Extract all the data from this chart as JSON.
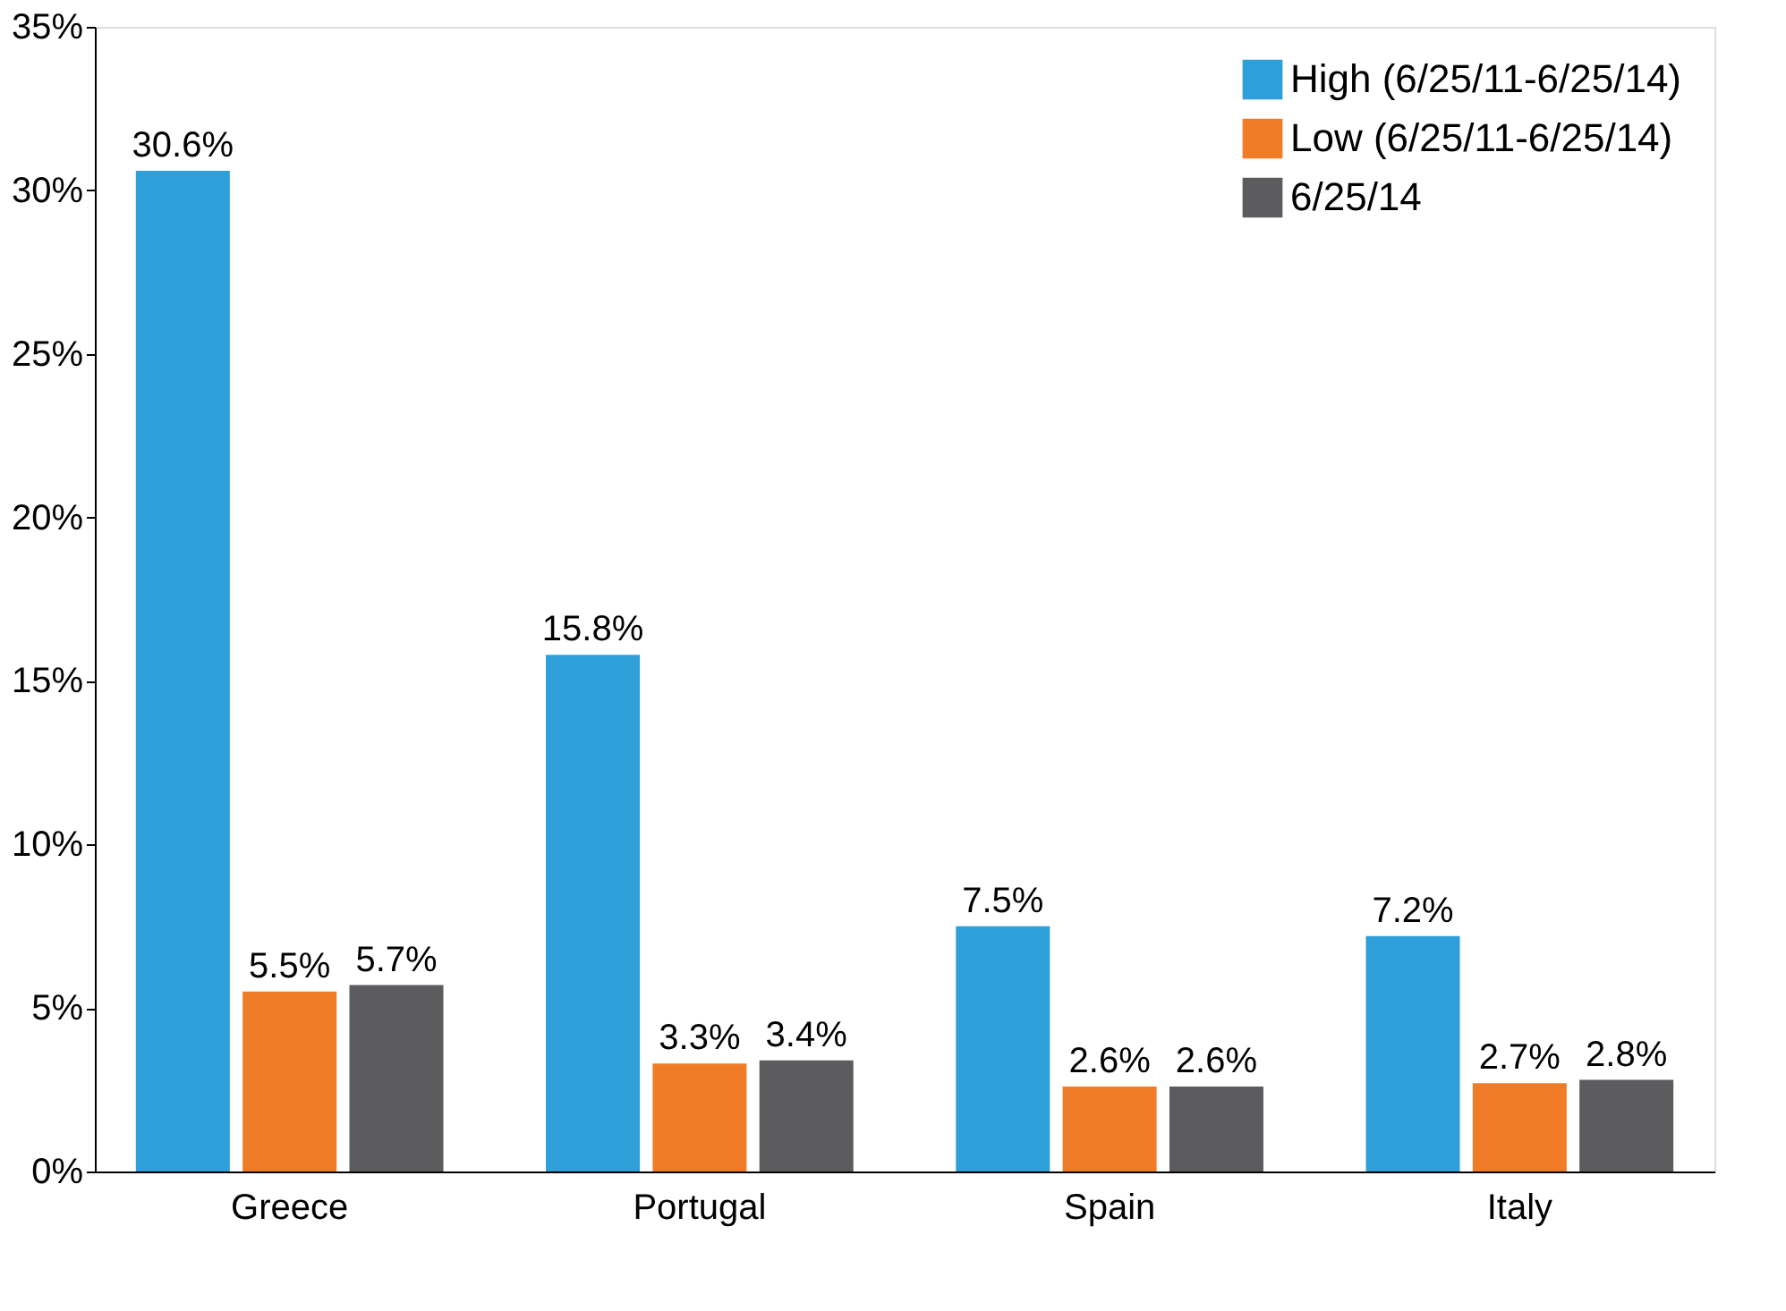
{
  "chart_data": {
    "type": "bar",
    "categories": [
      "Greece",
      "Portugal",
      "Spain",
      "Italy"
    ],
    "series": [
      {
        "name": "High (6/25/11-6/25/14)",
        "color": "#2e9fd8",
        "values": [
          30.6,
          15.8,
          7.5,
          7.2
        ],
        "value_labels": [
          "30.6%",
          "15.8%",
          "7.5%",
          "7.2%"
        ]
      },
      {
        "name": "Low (6/25/11-6/25/14)",
        "color": "#f07c28",
        "values": [
          5.5,
          3.3,
          2.6,
          2.7
        ],
        "value_labels": [
          "5.5%",
          "3.3%",
          "2.6%",
          "2.7%"
        ]
      },
      {
        "name": "6/25/14",
        "color": "#5c5c5e",
        "values": [
          5.7,
          3.4,
          2.6,
          2.8
        ],
        "value_labels": [
          "5.7%",
          "3.4%",
          "2.6%",
          "2.8%"
        ]
      }
    ],
    "ylim": [
      0,
      35
    ],
    "yticks": [
      {
        "value": 0,
        "label": "0%"
      },
      {
        "value": 5,
        "label": "5%"
      },
      {
        "value": 10,
        "label": "10%"
      },
      {
        "value": 15,
        "label": "15%"
      },
      {
        "value": 20,
        "label": "20%"
      },
      {
        "value": 25,
        "label": "25%"
      },
      {
        "value": 30,
        "label": "30%"
      },
      {
        "value": 35,
        "label": "35%"
      }
    ],
    "grid": false,
    "legend": "top right"
  }
}
